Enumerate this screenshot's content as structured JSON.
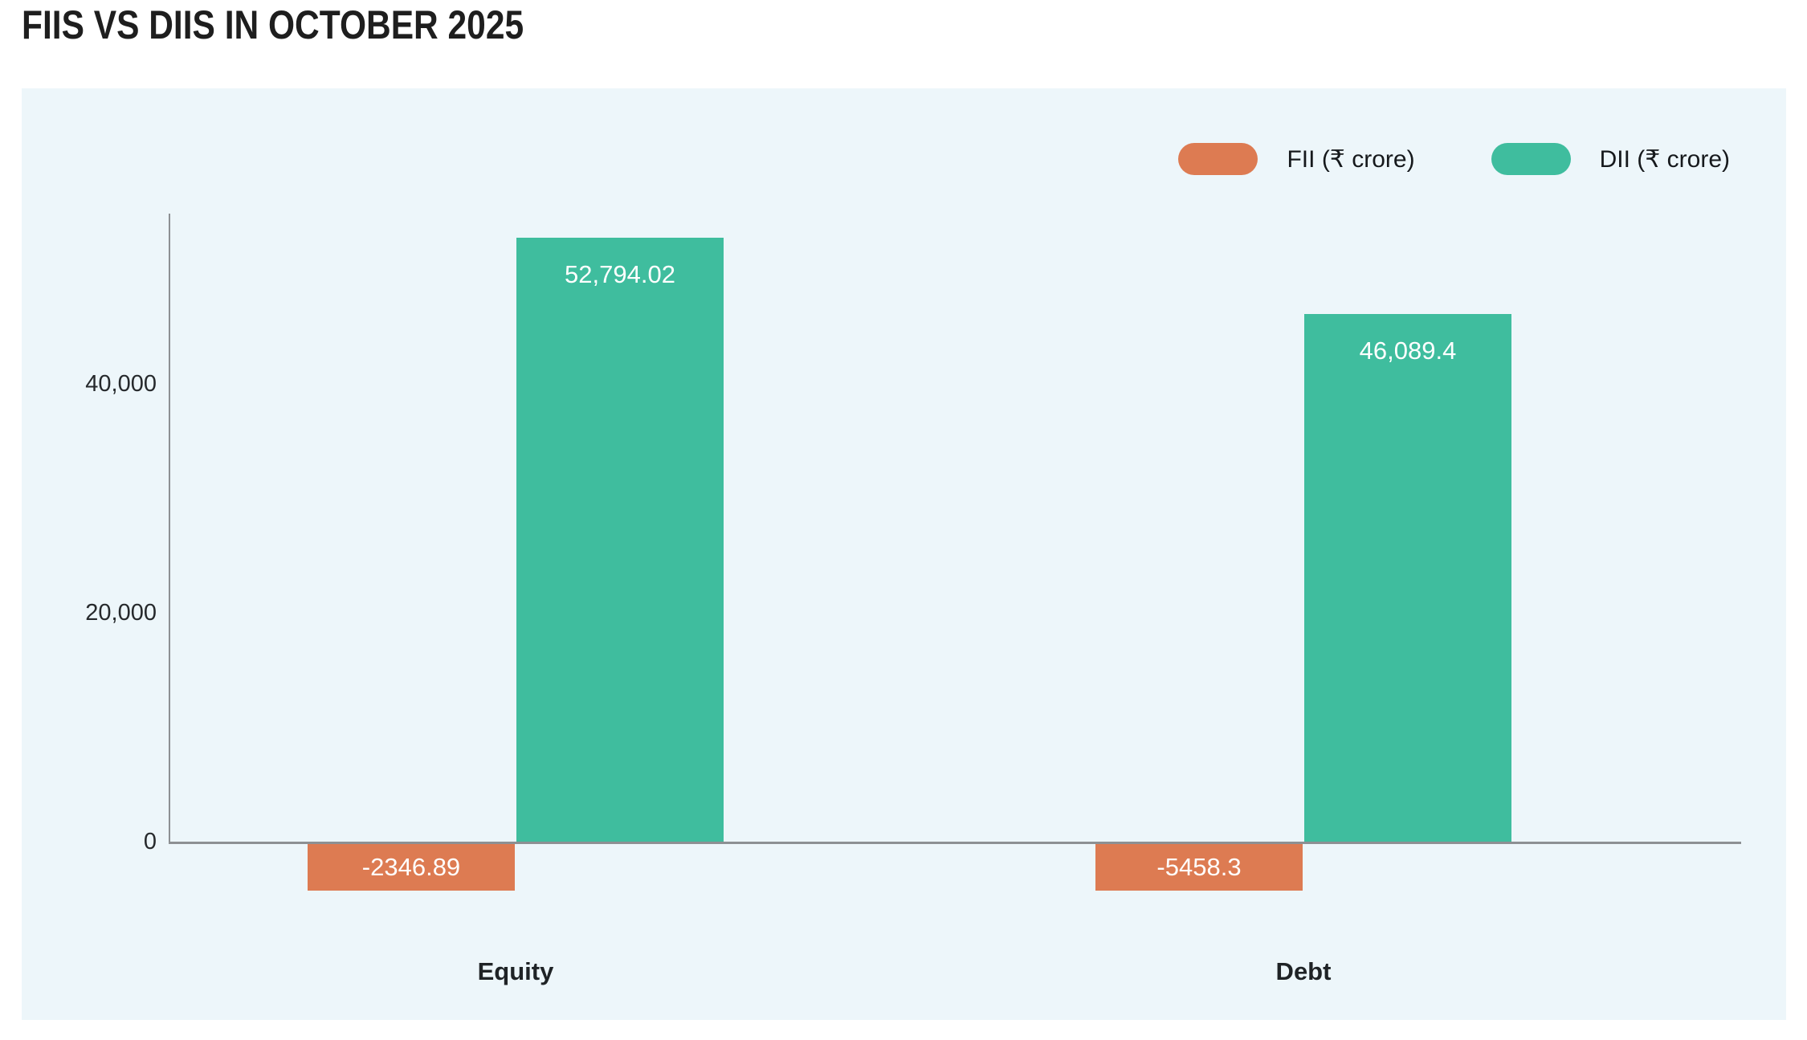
{
  "chart_data": {
    "type": "bar",
    "title": "FIIS VS DIIS IN OCTOBER 2025",
    "categories": [
      "Equity",
      "Debt"
    ],
    "series": [
      {
        "name": "FII (₹ crore)",
        "color": "#dd7b52",
        "values": [
          -2346.89,
          -5458.3
        ],
        "labels": [
          "-2346.89",
          "-5458.3"
        ]
      },
      {
        "name": "DII (₹ crore)",
        "color": "#3fbd9e",
        "values": [
          52794.02,
          46089.4
        ],
        "labels": [
          "52,794.02",
          "46,089.4"
        ]
      }
    ],
    "yticks": [
      {
        "value": 40000,
        "label": "40,000"
      },
      {
        "value": 20000,
        "label": "20,000"
      },
      {
        "value": 0,
        "label": "0"
      }
    ],
    "ylim": [
      -6000,
      56000
    ],
    "xlabel": "",
    "ylabel": "",
    "grid": false,
    "legend_position": "top-right",
    "colors": {
      "panel_background": "#edf6fa",
      "page_background": "#ffffff",
      "axis": "#8d9093",
      "bar_label_text": "#ffffff",
      "title_text": "#1e1e1e"
    }
  }
}
